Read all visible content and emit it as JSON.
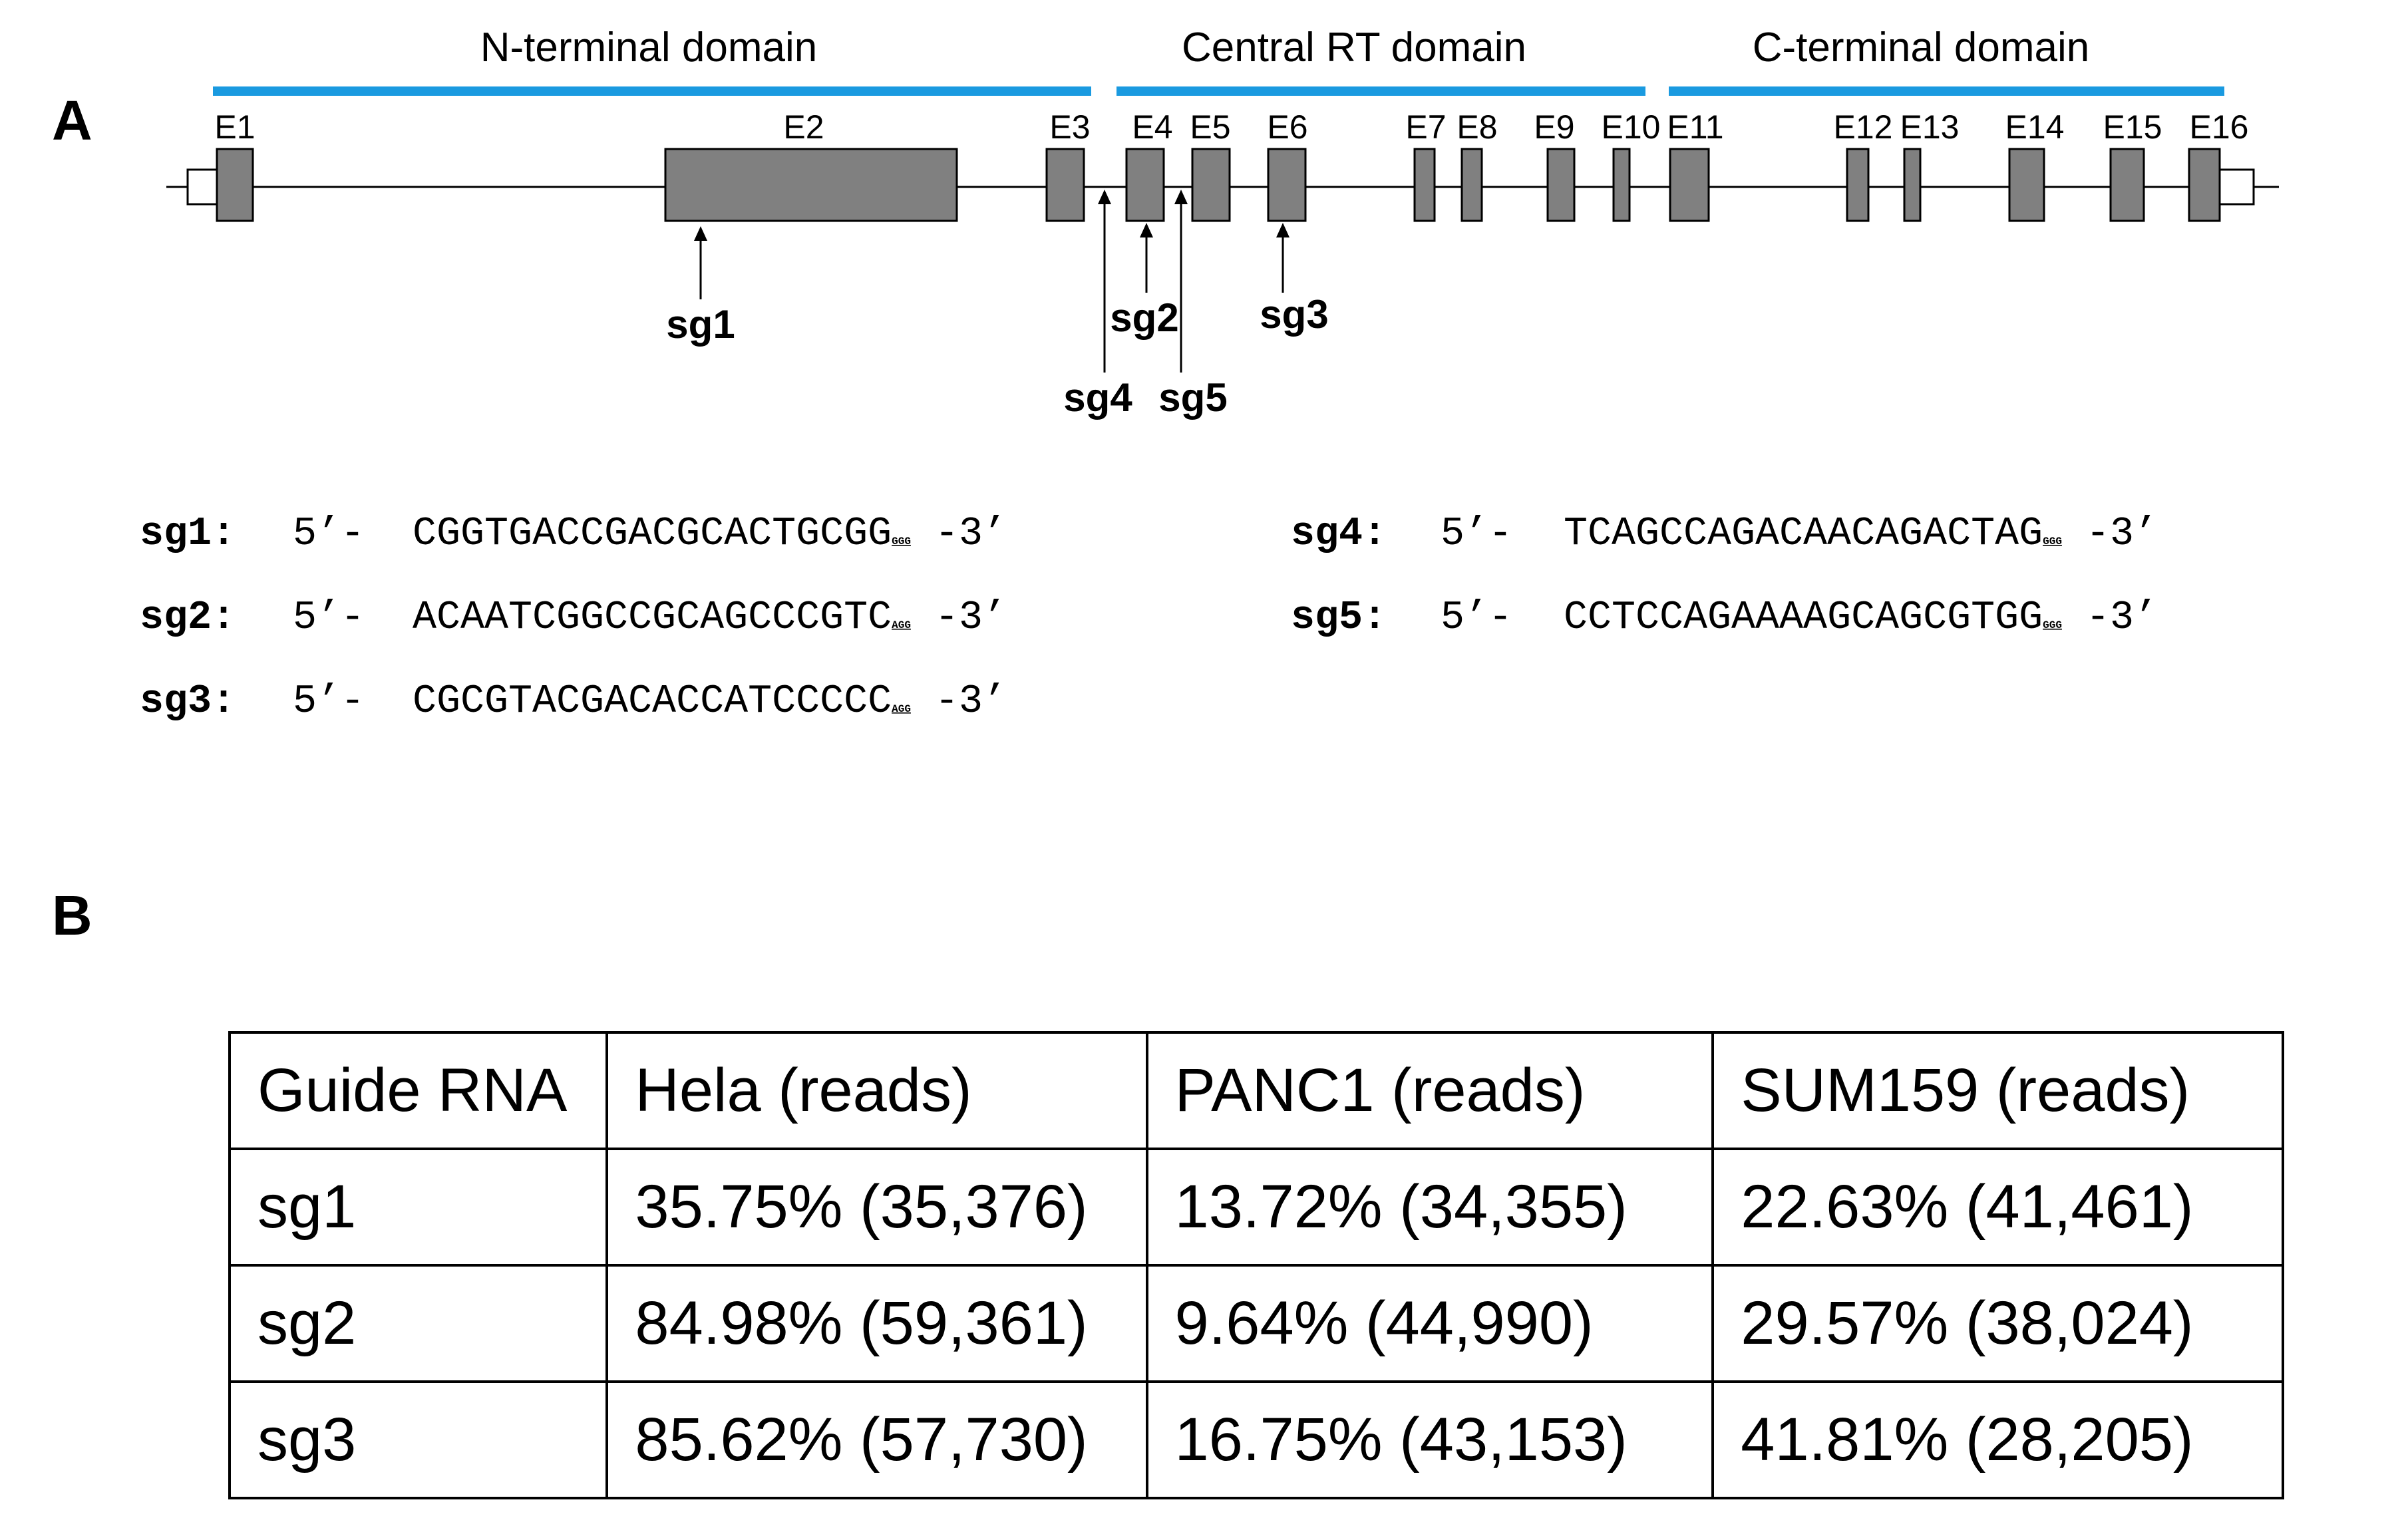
{
  "panel_a": {
    "letter": "A",
    "domains": [
      {
        "label": "N-terminal domain",
        "color": "#1a9ae0"
      },
      {
        "label": "Central RT domain",
        "color": "#1a9ae0"
      },
      {
        "label": "C-terminal domain",
        "color": "#1a9ae0"
      }
    ],
    "exons": [
      "E1",
      "E2",
      "E3",
      "E4",
      "E5",
      "E6",
      "E7",
      "E8",
      "E9",
      "E10",
      "E11",
      "E12",
      "E13",
      "E14",
      "E15",
      "E16"
    ],
    "sgrna_sites": [
      "sg1",
      "sg2",
      "sg3",
      "sg4",
      "sg5"
    ],
    "sequences": [
      {
        "name": "sg1:",
        "prefix": "5’- ",
        "seq": "CGGTGACCGACGCACTGCGG",
        "pam": "GGG",
        "suffix": " -3’"
      },
      {
        "name": "sg2:",
        "prefix": "5’- ",
        "seq": "ACAATCGGCCGCAGCCCGTC",
        "pam": "AGG",
        "suffix": " -3’"
      },
      {
        "name": "sg3:",
        "prefix": "5’- ",
        "seq": "CGCGTACGACACCATCCCCC",
        "pam": "AGG",
        "suffix": " -3’"
      },
      {
        "name": "sg4:",
        "prefix": "5’- ",
        "seq": "TCAGCCAGACAACAGACTAG",
        "pam": "GGG",
        "suffix": " -3’"
      },
      {
        "name": "sg5:",
        "prefix": "5’- ",
        "seq": "CCTCCAGAAAAGCAGCGTGG",
        "pam": "GGG",
        "suffix": " -3’"
      }
    ]
  },
  "panel_b": {
    "letter": "B",
    "table": {
      "headers": [
        "Guide RNA",
        "Hela (reads)",
        "PANC1 (reads)",
        "SUM159 (reads)"
      ],
      "rows": [
        [
          "sg1",
          "35.75% (35,376)",
          "13.72% (34,355)",
          "22.63% (41,461)"
        ],
        [
          "sg2",
          "84.98% (59,361)",
          "9.64% (44,990)",
          "29.57% (38,024)"
        ],
        [
          "sg3",
          "85.62% (57,730)",
          "16.75% (43,153)",
          "41.81% (28,205)"
        ]
      ]
    }
  }
}
